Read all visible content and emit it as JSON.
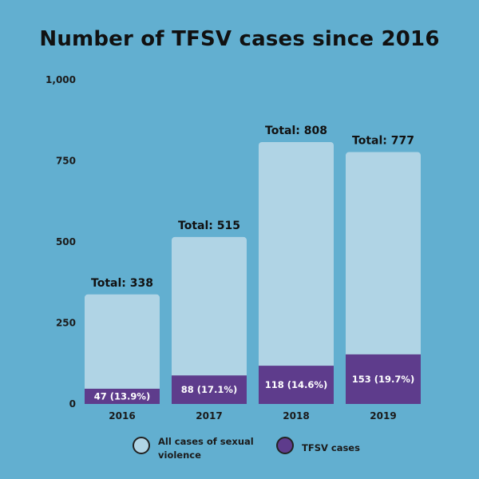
{
  "colors": {
    "background": "#62afd0",
    "all_cases": "#b0d4e5",
    "tfsv_cases": "#5e3c8c"
  },
  "chart_data": {
    "type": "bar",
    "title": "Number of TFSV cases since 2016",
    "categories": [
      "2016",
      "2017",
      "2018",
      "2019"
    ],
    "series": [
      {
        "name": "All cases of sexual violence",
        "values": [
          338,
          515,
          808,
          777
        ]
      },
      {
        "name": "TFSV cases",
        "values": [
          47,
          88,
          118,
          153
        ]
      }
    ],
    "total_labels": [
      "Total: 338",
      "Total: 515",
      "Total: 808",
      "Total: 777"
    ],
    "tfsv_labels": [
      "47 (13.9%)",
      "88 (17.1%)",
      "118 (14.6%)",
      "153 (19.7%)"
    ],
    "y_ticks": [
      "0",
      "250",
      "500",
      "750",
      "1,000"
    ],
    "ylim": [
      0,
      1000
    ],
    "stacking": "overlay",
    "legend_position": "bottom"
  }
}
